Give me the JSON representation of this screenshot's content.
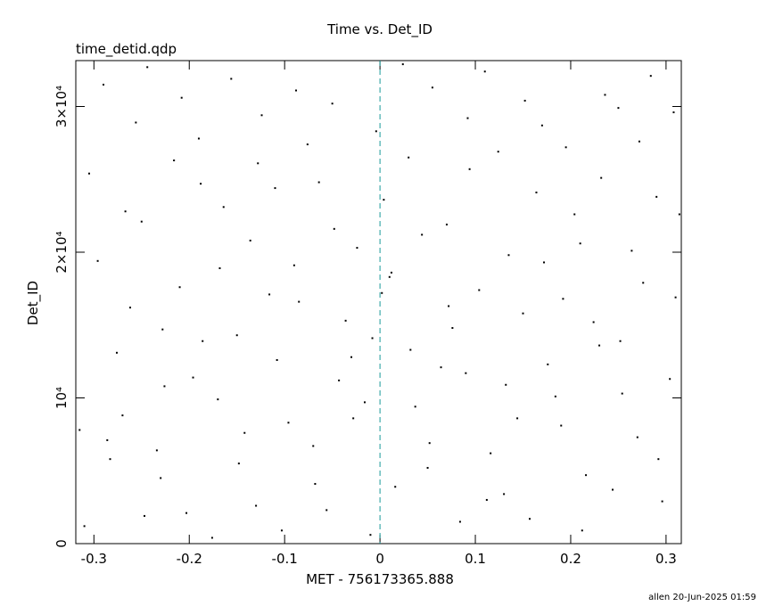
{
  "chart_data": {
    "type": "scatter",
    "title": "Time vs. Det_ID",
    "subtitle": "time_detid.qdp",
    "xlabel": "MET - 756173365.888",
    "ylabel": "Det_ID",
    "footer": "allen 20-Jun-2025 01:59",
    "color": "#000000",
    "vline": 0,
    "vline_color": "#1a9a9a",
    "xlim": [
      -0.319,
      0.316
    ],
    "ylim": [
      0,
      33150
    ],
    "xticks": [
      -0.3,
      -0.2,
      -0.1,
      0,
      0.1,
      0.2,
      0.3
    ],
    "yticks": [
      0,
      {
        "value": 10000,
        "label": "10⁴"
      },
      {
        "value": 20000,
        "label": "2×10⁴"
      },
      {
        "value": 30000,
        "label": "3×10⁴"
      }
    ],
    "x": [
      -0.31,
      -0.29,
      -0.27,
      -0.25,
      -0.23,
      -0.21,
      -0.19,
      -0.17,
      -0.15,
      -0.13,
      -0.11,
      -0.09,
      -0.07,
      -0.05,
      -0.03,
      -0.01,
      0.01,
      0.03,
      0.05,
      0.07,
      0.09,
      0.11,
      0.13,
      0.15,
      0.17,
      0.19,
      0.21,
      0.23,
      0.25,
      0.27,
      0.29,
      0.31,
      -0.305,
      -0.283,
      -0.262,
      -0.244,
      -0.226,
      -0.203,
      -0.186,
      -0.164,
      -0.142,
      -0.124,
      -0.103,
      -0.085,
      -0.064,
      -0.043,
      -0.024,
      -0.004,
      0.016,
      0.037,
      0.055,
      0.076,
      0.094,
      0.116,
      0.135,
      0.157,
      0.176,
      0.195,
      0.216,
      0.236,
      0.254,
      0.276,
      0.296,
      0.314,
      -0.296,
      -0.276,
      -0.256,
      -0.234,
      -0.216,
      -0.196,
      -0.176,
      -0.156,
      -0.136,
      -0.116,
      -0.096,
      -0.076,
      -0.056,
      -0.036,
      -0.016,
      0.004,
      0.024,
      0.044,
      0.064,
      0.084,
      0.104,
      0.124,
      0.144,
      0.164,
      0.184,
      0.204,
      0.224,
      0.244,
      0.264,
      0.284,
      0.304,
      -0.315,
      -0.286,
      -0.267,
      -0.247,
      -0.228,
      -0.208,
      -0.188,
      -0.168,
      -0.148,
      -0.128,
      -0.108,
      -0.088,
      -0.068,
      -0.048,
      -0.028,
      -0.008,
      0.012,
      0.032,
      0.052,
      0.072,
      0.092,
      0.112,
      0.132,
      0.152,
      0.172,
      0.192,
      0.212,
      0.232,
      0.252,
      0.272,
      0.292,
      0.308,
      0.002
    ],
    "values": [
      1200,
      31500,
      8800,
      22100,
      4500,
      17600,
      27800,
      9900,
      14300,
      2600,
      24400,
      19100,
      6700,
      30200,
      12800,
      600,
      18300,
      26500,
      5200,
      21900,
      11700,
      32400,
      3400,
      15800,
      28700,
      8100,
      20600,
      13600,
      29900,
      7300,
      23800,
      16900,
      25400,
      5800,
      16200,
      32700,
      10800,
      2100,
      13900,
      23100,
      7600,
      29400,
      900,
      16600,
      24800,
      11200,
      20300,
      28300,
      3900,
      9400,
      31300,
      14800,
      25700,
      6200,
      19800,
      1700,
      12300,
      27200,
      4700,
      30800,
      10300,
      17900,
      2900,
      22600,
      19400,
      13100,
      28900,
      6400,
      26300,
      11400,
      400,
      31900,
      20800,
      17100,
      8300,
      27400,
      2300,
      15300,
      9700,
      23600,
      32900,
      21200,
      12100,
      1500,
      17400,
      26900,
      8600,
      24100,
      10100,
      22600,
      15200,
      3700,
      20100,
      32100,
      11300,
      7800,
      7100,
      22800,
      1900,
      14700,
      30600,
      24700,
      18900,
      5500,
      26100,
      12600,
      31100,
      4100,
      21600,
      8600,
      14100,
      18600,
      13300,
      6900,
      16300,
      29200,
      3000,
      10900,
      30400,
      19300,
      16800,
      900,
      25100,
      13900,
      27600,
      5800,
      29600,
      17200
    ]
  }
}
